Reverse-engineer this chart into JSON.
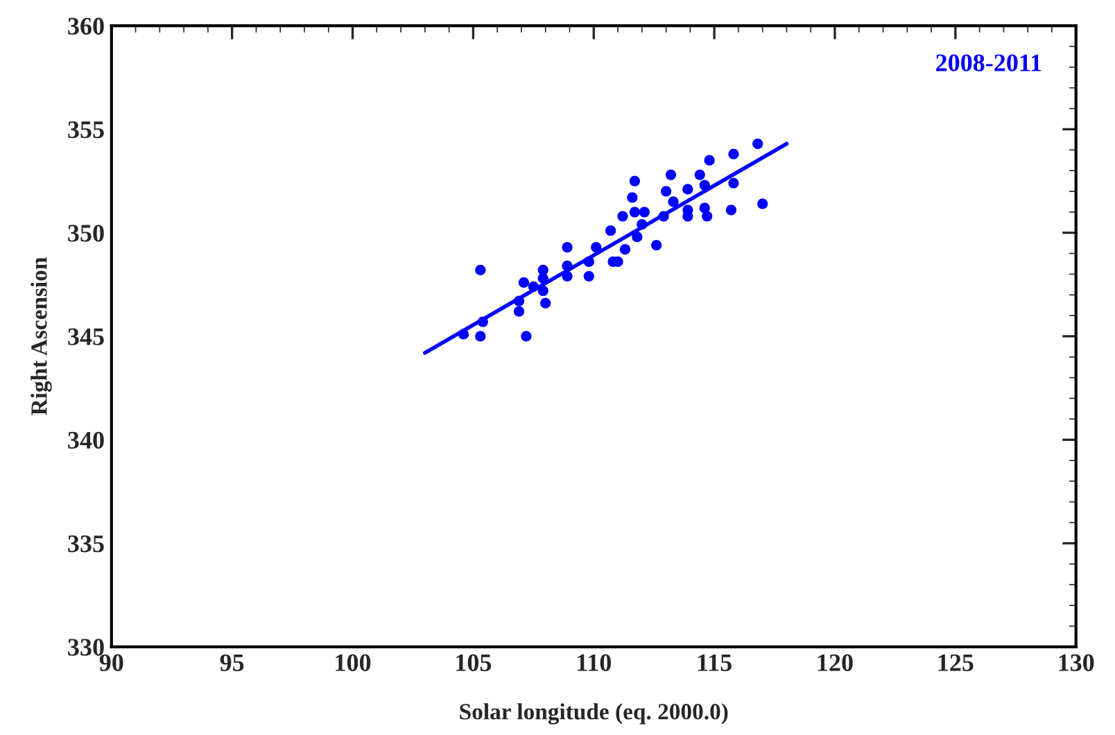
{
  "chart_data": {
    "type": "scatter",
    "xlabel": "Solar longitude (eq. 2000.0)",
    "ylabel": "Right Ascension",
    "xlim": [
      90,
      130
    ],
    "ylim": [
      330,
      360
    ],
    "xticks": [
      90,
      95,
      100,
      105,
      110,
      115,
      120,
      125,
      130
    ],
    "yticks": [
      330,
      335,
      340,
      345,
      350,
      355,
      360
    ],
    "grid": false,
    "legend": false,
    "annotations": [
      "2008-2011"
    ],
    "series": [
      {
        "marker": "circle",
        "color": "#0000ff",
        "x": [
          104.6,
          105.3,
          105.3,
          105.4,
          106.9,
          106.9,
          107.2,
          107.1,
          107.5,
          107.9,
          107.9,
          107.9,
          108.0,
          108.9,
          108.9,
          108.9,
          109.8,
          109.8,
          110.1,
          110.7,
          110.8,
          111.0,
          111.2,
          111.3,
          111.7,
          111.6,
          111.7,
          111.8,
          112.0,
          112.1,
          112.6,
          112.9,
          113.0,
          113.2,
          113.3,
          113.9,
          113.9,
          113.9,
          114.4,
          114.6,
          114.6,
          114.7,
          114.8,
          115.8,
          115.8,
          115.7,
          116.8,
          117.0
        ],
        "values": [
          345.1,
          348.2,
          345.0,
          345.7,
          346.7,
          346.2,
          345.0,
          347.6,
          347.4,
          348.2,
          347.8,
          347.2,
          346.6,
          349.3,
          348.4,
          347.9,
          348.6,
          347.9,
          349.3,
          350.1,
          348.6,
          348.6,
          350.8,
          349.2,
          352.5,
          351.7,
          351.0,
          349.8,
          350.4,
          351.0,
          349.4,
          350.8,
          352.0,
          352.8,
          351.5,
          352.1,
          351.1,
          350.8,
          352.8,
          352.3,
          351.2,
          350.8,
          353.5,
          353.8,
          352.4,
          351.1,
          354.3,
          351.4
        ]
      },
      {
        "type": "line",
        "marker": "none",
        "color": "#0000ff",
        "x": [
          103.0,
          118.0
        ],
        "values": [
          344.2,
          354.3
        ]
      }
    ]
  }
}
